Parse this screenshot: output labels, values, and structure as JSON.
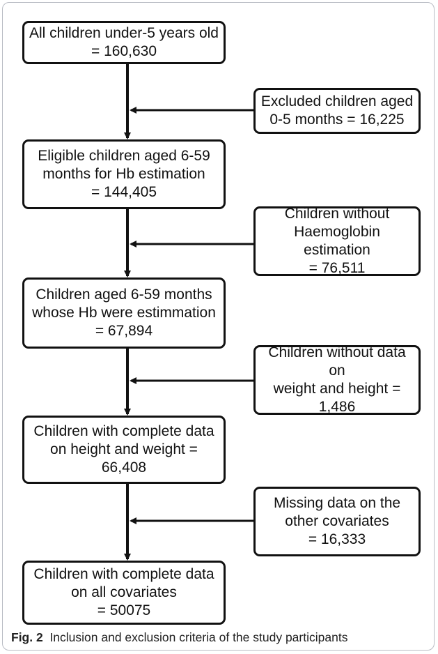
{
  "diagram": {
    "main_boxes": [
      {
        "text": "All children under-5 years old\n= 160,630"
      },
      {
        "text": "Eligible children aged 6-59\nmonths for Hb estimation\n= 144,405"
      },
      {
        "text": "Children aged 6-59 months\nwhose Hb were estimmation\n= 67,894"
      },
      {
        "text": "Children with complete data\non height and weight =\n66,408"
      },
      {
        "text": "Children with complete data\non all covariates\n= 50075"
      }
    ],
    "exclusion_boxes": [
      {
        "text": "Excluded children aged\n0-5 months = 16,225"
      },
      {
        "text": "Children without\nHaemoglobin estimation\n= 76,511"
      },
      {
        "text": "Children without data on\nweight and height =\n1,486"
      },
      {
        "text": "Missing data on the\nother covariates\n= 16,333"
      }
    ]
  },
  "caption": {
    "label": "Fig. 2",
    "text": "Inclusion and exclusion criteria of the study participants"
  }
}
